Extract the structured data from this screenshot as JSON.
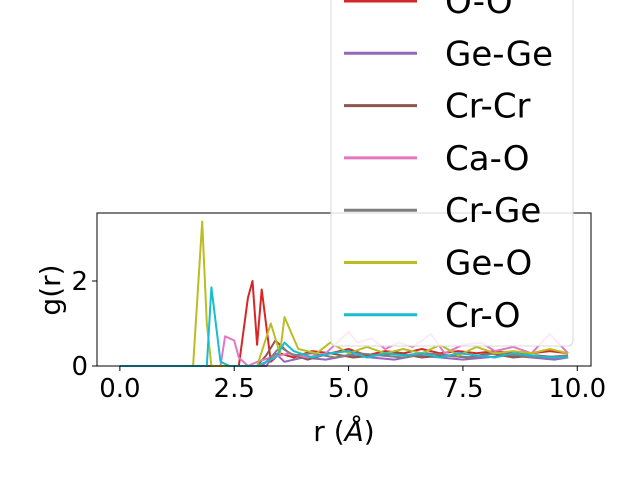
{
  "chart_data": {
    "type": "line",
    "xlabel": "r (",
    "xlabel_unit": "Å",
    "xlabel_close": ")",
    "ylabel": "g(r)",
    "xlim": [
      -0.5,
      10.3
    ],
    "ylim": [
      0,
      3.6
    ],
    "xticks": [
      0.0,
      2.5,
      5.0,
      7.5,
      10.0
    ],
    "xtick_labels": [
      "0.0",
      "2.5",
      "5.0",
      "7.5",
      "10.0"
    ],
    "yticks": [
      0,
      2
    ],
    "ytick_labels": [
      "0",
      "2"
    ],
    "grid": false,
    "legend_position": "top-right",
    "series": [
      {
        "name": "O-O",
        "color": "#d62728",
        "x": [
          0,
          2.6,
          2.8,
          2.9,
          3.0,
          3.1,
          3.3,
          3.5,
          3.8,
          4.2,
          4.6,
          5.0,
          5.4,
          5.8,
          6.2,
          6.6,
          7.0,
          7.4,
          7.8,
          8.2,
          8.6,
          9.0,
          9.4,
          9.8
        ],
        "y": [
          0,
          0,
          1.6,
          2.0,
          0.5,
          1.8,
          0.1,
          0.3,
          0.2,
          0.35,
          0.3,
          0.4,
          0.25,
          0.35,
          0.3,
          0.4,
          0.3,
          0.35,
          0.3,
          0.35,
          0.3,
          0.3,
          0.35,
          0.3
        ]
      },
      {
        "name": "Ge-Ge",
        "color": "#9467bd",
        "x": [
          0,
          3.2,
          3.4,
          3.6,
          4.0,
          4.5,
          5.0,
          5.5,
          6.0,
          6.5,
          7.0,
          7.5,
          8.0,
          8.5,
          9.0,
          9.5,
          9.8
        ],
        "y": [
          0,
          0,
          0.3,
          0.1,
          0.2,
          0.15,
          0.25,
          0.2,
          0.15,
          0.25,
          0.2,
          0.15,
          0.2,
          0.25,
          0.2,
          0.15,
          0.2
        ]
      },
      {
        "name": "Cr-Cr",
        "color": "#8c564b",
        "x": [
          0,
          3.0,
          3.2,
          3.4,
          3.7,
          4.1,
          4.6,
          5.1,
          5.6,
          6.1,
          6.6,
          7.1,
          7.6,
          8.1,
          8.6,
          9.1,
          9.6,
          9.8
        ],
        "y": [
          0,
          0,
          0.25,
          0.6,
          0.3,
          0.15,
          0.3,
          0.2,
          0.25,
          0.3,
          0.2,
          0.25,
          0.2,
          0.3,
          0.2,
          0.25,
          0.2,
          0.2
        ]
      },
      {
        "name": "Ca-O",
        "color": "#e377c2",
        "x": [
          0,
          2.2,
          2.3,
          2.5,
          2.6,
          2.8,
          3.0,
          3.3,
          3.7,
          4.1,
          4.5,
          5.0,
          5.2,
          5.5,
          5.8,
          6.1,
          6.4,
          6.8,
          7.1,
          7.5,
          7.9,
          8.2,
          8.6,
          9.0,
          9.4,
          9.8
        ],
        "y": [
          0,
          0,
          0.7,
          0.6,
          0.2,
          0.0,
          0.1,
          0.2,
          0.3,
          0.2,
          0.3,
          0.8,
          0.55,
          0.65,
          0.4,
          0.55,
          0.45,
          0.75,
          0.3,
          0.5,
          0.55,
          0.35,
          0.45,
          0.3,
          0.75,
          0.3
        ]
      },
      {
        "name": "Cr-Ge",
        "color": "#7f7f7f",
        "x": [
          0,
          3.1,
          3.3,
          3.5,
          3.8,
          4.2,
          4.7,
          5.2,
          5.7,
          6.2,
          6.7,
          7.2,
          7.7,
          8.2,
          8.7,
          9.2,
          9.8
        ],
        "y": [
          0,
          0,
          0.2,
          0.45,
          0.25,
          0.3,
          0.2,
          0.3,
          0.25,
          0.2,
          0.3,
          0.25,
          0.2,
          0.3,
          0.25,
          0.2,
          0.25
        ]
      },
      {
        "name": "Ge-O",
        "color": "#bcbd22",
        "x": [
          0,
          1.6,
          1.8,
          1.9,
          2.0,
          2.3,
          3.0,
          3.3,
          3.5,
          3.6,
          3.9,
          4.3,
          4.6,
          5.0,
          5.4,
          5.8,
          6.2,
          6.6,
          7.0,
          7.4,
          7.8,
          8.2,
          8.6,
          9.0,
          9.4,
          9.8
        ],
        "y": [
          0,
          0,
          3.4,
          1.0,
          0.0,
          0.0,
          0.0,
          1.0,
          0.3,
          1.15,
          0.4,
          0.3,
          0.55,
          0.3,
          0.45,
          0.3,
          0.4,
          0.3,
          0.5,
          0.25,
          0.45,
          0.3,
          0.35,
          0.3,
          0.4,
          0.3
        ]
      },
      {
        "name": "Cr-O",
        "color": "#17becf",
        "x": [
          0,
          1.9,
          2.0,
          2.2,
          2.4,
          3.0,
          3.4,
          3.6,
          3.8,
          4.2,
          4.6,
          5.0,
          5.4,
          5.8,
          6.2,
          6.6,
          7.0,
          7.4,
          7.8,
          8.2,
          8.6,
          9.0,
          9.4,
          9.8
        ],
        "y": [
          0,
          0,
          1.85,
          0.1,
          0.0,
          0.0,
          0.2,
          0.55,
          0.35,
          0.2,
          0.3,
          0.35,
          0.2,
          0.3,
          0.25,
          0.3,
          0.2,
          0.3,
          0.25,
          0.2,
          0.3,
          0.25,
          0.2,
          0.2
        ]
      }
    ]
  }
}
